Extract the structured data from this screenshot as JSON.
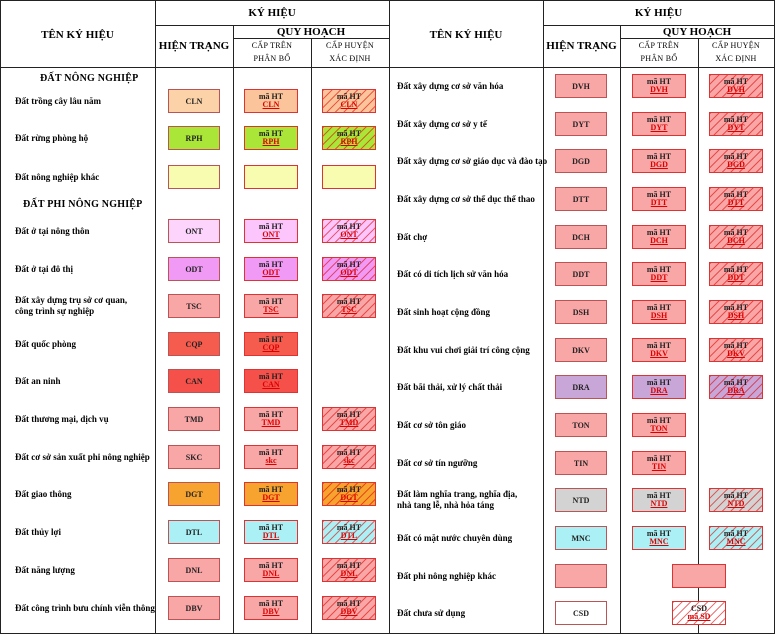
{
  "header": {
    "ten_ky_hieu": "TÊN KÝ HIỆU",
    "ky_hieu": "KÝ HIỆU",
    "hien_trang": "HIỆN TRẠNG",
    "quy_hoach": "QUY HOẠCH",
    "cap_tren_1": "CẤP TRÊN",
    "cap_tren_2": "PHÂN BỔ",
    "cap_huyen_1": "CẤP HUYỆN",
    "cap_huyen_2": "XÁC ĐỊNH"
  },
  "plan_prefix": "mã HT",
  "sections": {
    "nong_nghiep": "ĐẤT NÔNG NGHIỆP",
    "phi_nong_nghiep": "ĐẤT PHI NÔNG NGHIỆP"
  },
  "left_rows": [
    {
      "name": "Đất trồng cây lâu năm",
      "code": "CLN",
      "color": "#fcd3a8",
      "plan_color": "#fcc49a",
      "upper": true,
      "district": true
    },
    {
      "name": "Đất rừng phòng hộ",
      "code": "RPH",
      "color": "#aae637",
      "plan_color": "#aae637",
      "upper": true,
      "district": true
    },
    {
      "name": "Đất nông nghiệp khác",
      "code": "",
      "color": "#f7fcb0",
      "plan_color": "#f7fcb0",
      "upper": true,
      "district": true,
      "empty": true
    },
    {
      "name": "Đất ở tại nông thôn",
      "code": "ONT",
      "color": "#fcd4fc",
      "plan_color": "#fcc6fc",
      "upper": true,
      "district": true
    },
    {
      "name": "Đất ở tại đô thị",
      "code": "ODT",
      "color": "#f09af5",
      "plan_color": "#f09af5",
      "upper": true,
      "district": true
    },
    {
      "name": "Đất xây dựng trụ sở cơ quan,|công trình sự nghiệp",
      "code": "TSC",
      "color": "#f9a6a6",
      "plan_color": "#f9a6a6",
      "upper": true,
      "district": true
    },
    {
      "name": "Đất quốc phòng",
      "code": "CQP",
      "color": "#f55c4e",
      "plan_color": "#f55c4e",
      "upper": true,
      "district": false
    },
    {
      "name": "Đất an ninh",
      "code": "CAN",
      "color": "#f5504a",
      "plan_color": "#f5504a",
      "upper": true,
      "district": false
    },
    {
      "name": "Đất thương mại, dịch vụ",
      "code": "TMD",
      "color": "#f9a6a6",
      "plan_color": "#f9a6a6",
      "upper": true,
      "district": true
    },
    {
      "name": "Đất cơ sở sản xuất phi nông nghiệp",
      "code": "SKC",
      "color": "#f9a6a6",
      "plan_color": "#f9a6a6",
      "upper": true,
      "district": true,
      "plan_code": "skc"
    },
    {
      "name": "Đất giao thông",
      "code": "DGT",
      "color": "#f6a330",
      "plan_color": "#f6a330",
      "upper": true,
      "district": true
    },
    {
      "name": "Đất thủy lợi",
      "code": "DTL",
      "color": "#aaf0f5",
      "plan_color": "#aaf0f5",
      "upper": true,
      "district": true
    },
    {
      "name": "Đất năng lượng",
      "code": "DNL",
      "color": "#f9a6a6",
      "plan_color": "#f9a6a6",
      "upper": true,
      "district": true
    },
    {
      "name": "Đất công trình bưu chính viễn thông",
      "code": "DBV",
      "color": "#f9a6a6",
      "plan_color": "#f9a6a6",
      "upper": true,
      "district": true
    }
  ],
  "right_rows": [
    {
      "name": "Đất xây dựng cơ sở văn hóa",
      "code": "DVH",
      "color": "#f9a6a6",
      "plan_color": "#f9a6a6",
      "upper": true,
      "district": true
    },
    {
      "name": "Đất xây dựng cơ sở y tế",
      "code": "DYT",
      "color": "#f9a6a6",
      "plan_color": "#f9a6a6",
      "upper": true,
      "district": true
    },
    {
      "name": "Đất xây dựng cơ sở giáo dục và đào tạo",
      "code": "DGD",
      "color": "#f9a6a6",
      "plan_color": "#f9a6a6",
      "upper": true,
      "district": true
    },
    {
      "name": "Đất xây dựng cơ sở thể dục thể thao",
      "code": "DTT",
      "color": "#f9a6a6",
      "plan_color": "#f9a6a6",
      "upper": true,
      "district": true
    },
    {
      "name": "Đất chợ",
      "code": "DCH",
      "color": "#f9a6a6",
      "plan_color": "#f9a6a6",
      "upper": true,
      "district": true
    },
    {
      "name": "Đất có di tích lịch sử văn hóa",
      "code": "DDT",
      "color": "#f9a6a6",
      "plan_color": "#f9a6a6",
      "upper": true,
      "district": true
    },
    {
      "name": "Đất sinh hoạt cộng đồng",
      "code": "DSH",
      "color": "#f9a6a6",
      "plan_color": "#f9a6a6",
      "upper": true,
      "district": true
    },
    {
      "name": "Đất khu vui chơi giải trí công cộng",
      "code": "DKV",
      "color": "#f9a6a6",
      "plan_color": "#f9a6a6",
      "upper": true,
      "district": true
    },
    {
      "name": "Đất bãi thải, xử lý chất thải",
      "code": "DRA",
      "color": "#c9a6d8",
      "plan_color": "#c9a6d8",
      "upper": true,
      "district": true
    },
    {
      "name": "Đất cơ sở tôn giáo",
      "code": "TON",
      "color": "#f9a6a6",
      "plan_color": "#f9a6a6",
      "upper": true,
      "district": false
    },
    {
      "name": "Đất cơ sở tín ngưỡng",
      "code": "TIN",
      "color": "#f9a6a6",
      "plan_color": "#f9a6a6",
      "upper": true,
      "district": false
    },
    {
      "name": "Đất làm nghĩa trang, nghĩa địa,|nhà tang lễ, nhà hỏa táng",
      "code": "NTD",
      "color": "#d3d3d3",
      "plan_color": "#d3d3d3",
      "upper": true,
      "district": true
    },
    {
      "name": "Đất có mặt nước chuyên dùng",
      "code": "MNC",
      "color": "#aaf0f5",
      "plan_color": "#aaf0f5",
      "upper": true,
      "district": true
    },
    {
      "name": "Đất phi nông nghiệp khác",
      "code": "",
      "color": "#f9a6a6",
      "plan_color": "#f9a6a6",
      "upper": false,
      "district": false,
      "solid_right": true
    },
    {
      "name": "Đất chưa sử dụng",
      "code": "CSD",
      "color": "#ffffff",
      "plan_color": "#ffffff",
      "upper": false,
      "district": false,
      "csd": true,
      "csd_line2": "mã SD"
    }
  ]
}
